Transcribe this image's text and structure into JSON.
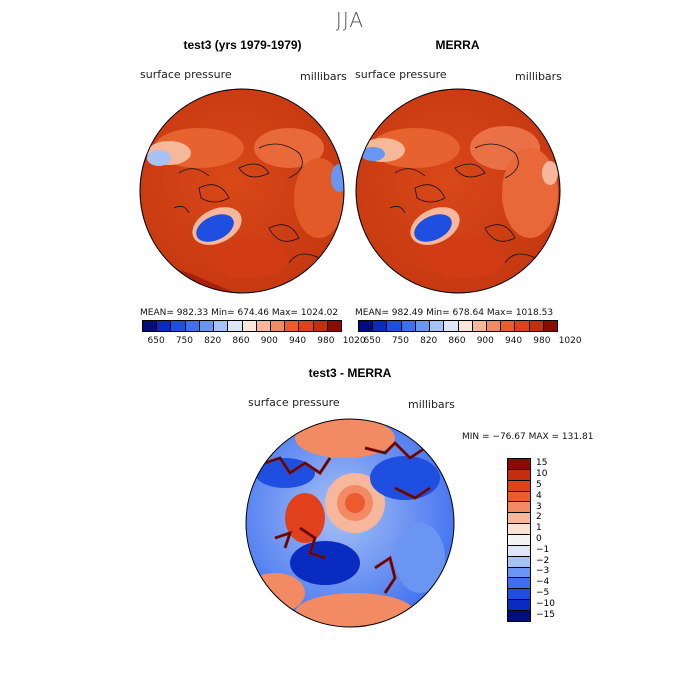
{
  "title": "JJA",
  "panels": {
    "left": {
      "title": "test3 (yrs 1979-1979)",
      "var_label": "surface pressure",
      "units": "millibars",
      "stats": "MEAN= 982.33   Min= 674.46   Max= 1024.02"
    },
    "right": {
      "title": "MERRA",
      "var_label": "surface pressure",
      "units": "millibars",
      "stats": "MEAN= 982.49   Min= 678.64   Max= 1018.53"
    },
    "diff": {
      "title": "test3 - MERRA",
      "var_label": "surface pressure",
      "units": "millibars",
      "stats": "MIN = −76.67  MAX = 131.81"
    }
  },
  "top_colorbar": {
    "colors": [
      "#000d7a",
      "#0a2bbf",
      "#1f4fe0",
      "#3f6ff0",
      "#6b95f2",
      "#a7c2f5",
      "#dde6f7",
      "#fbe6dc",
      "#f7b79c",
      "#f28a64",
      "#ec5a2e",
      "#e0401c",
      "#c42d10",
      "#8c0a04"
    ],
    "ticks": [
      "650",
      "750",
      "820",
      "860",
      "900",
      "940",
      "980",
      "1020"
    ]
  },
  "diff_colorbar": {
    "colors": [
      "#8c0a04",
      "#c42d10",
      "#e0401c",
      "#ec5a2e",
      "#f28a64",
      "#f7b79c",
      "#fbe0d4",
      "#f4f4f4",
      "#dde6f7",
      "#a7c2f5",
      "#6b95f2",
      "#3f6ff0",
      "#1f4fe0",
      "#0a2bbf",
      "#000d7a"
    ],
    "ticks": [
      "15",
      "10",
      "5",
      "4",
      "3",
      "2",
      "1",
      "0",
      "−1",
      "−2",
      "−3",
      "−4",
      "−5",
      "−10",
      "−15"
    ]
  }
}
